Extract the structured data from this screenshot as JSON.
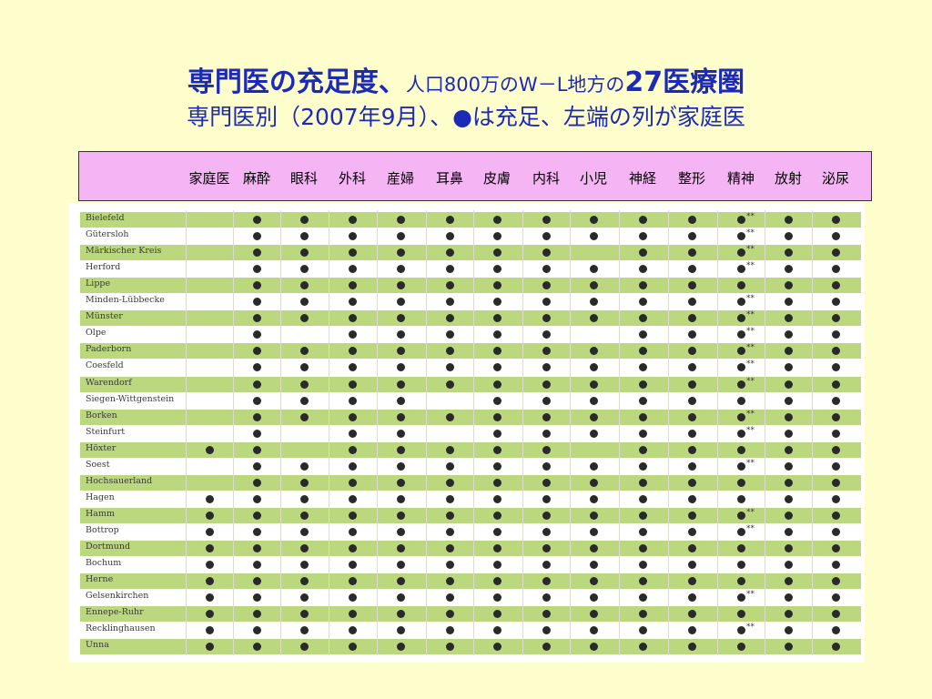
{
  "title_line1": {
    "part1": "専門医の充足度、",
    "part2": "人口800万のW－L地方の",
    "part3": "27医療圏"
  },
  "title_line2": "専門医別（2007年9月）、●は充足、左端の列が家庭医",
  "columns": [
    "家庭医",
    "麻酔",
    "眼科",
    "外科",
    "産婦",
    "耳鼻",
    "皮膚",
    "内科",
    "小児",
    "神経",
    "整形",
    "精神",
    "放射",
    "泌尿"
  ],
  "stars_marker": "**",
  "regions": [
    {
      "name": "Bielefeld",
      "dots": [
        0,
        1,
        1,
        1,
        1,
        1,
        1,
        1,
        1,
        1,
        1,
        2,
        1,
        1
      ]
    },
    {
      "name": "Gütersloh",
      "dots": [
        0,
        1,
        1,
        1,
        1,
        1,
        1,
        1,
        1,
        1,
        1,
        2,
        1,
        1
      ]
    },
    {
      "name": "Märkischer Kreis",
      "dots": [
        0,
        1,
        1,
        1,
        1,
        1,
        1,
        1,
        0,
        1,
        1,
        2,
        1,
        1
      ]
    },
    {
      "name": "Herford",
      "dots": [
        0,
        1,
        1,
        1,
        1,
        1,
        1,
        1,
        1,
        1,
        1,
        2,
        1,
        1
      ]
    },
    {
      "name": "Lippe",
      "dots": [
        0,
        1,
        1,
        1,
        1,
        1,
        1,
        1,
        1,
        1,
        1,
        1,
        1,
        1
      ]
    },
    {
      "name": "Minden-Lübbecke",
      "dots": [
        0,
        1,
        1,
        1,
        1,
        1,
        1,
        1,
        1,
        1,
        1,
        2,
        1,
        1
      ]
    },
    {
      "name": "Münster",
      "dots": [
        0,
        1,
        1,
        1,
        1,
        1,
        1,
        1,
        1,
        1,
        1,
        2,
        1,
        1
      ]
    },
    {
      "name": "Olpe",
      "dots": [
        0,
        1,
        0,
        1,
        1,
        1,
        1,
        1,
        0,
        1,
        1,
        2,
        1,
        1
      ]
    },
    {
      "name": "Paderborn",
      "dots": [
        0,
        1,
        1,
        1,
        1,
        1,
        1,
        1,
        1,
        1,
        1,
        2,
        1,
        1
      ]
    },
    {
      "name": "Coesfeld",
      "dots": [
        0,
        1,
        1,
        1,
        1,
        1,
        1,
        1,
        1,
        1,
        1,
        2,
        1,
        1
      ]
    },
    {
      "name": "Warendorf",
      "dots": [
        0,
        1,
        1,
        1,
        1,
        1,
        1,
        1,
        1,
        1,
        1,
        2,
        1,
        1
      ]
    },
    {
      "name": "Siegen-Wittgenstein",
      "dots": [
        0,
        1,
        1,
        1,
        1,
        0,
        1,
        1,
        1,
        1,
        1,
        1,
        1,
        1
      ]
    },
    {
      "name": "Borken",
      "dots": [
        0,
        1,
        1,
        1,
        1,
        1,
        1,
        1,
        1,
        1,
        1,
        2,
        1,
        1
      ]
    },
    {
      "name": "Steinfurt",
      "dots": [
        0,
        1,
        0,
        1,
        1,
        0,
        1,
        1,
        1,
        1,
        1,
        2,
        1,
        1
      ]
    },
    {
      "name": "Höxter",
      "dots": [
        1,
        1,
        0,
        1,
        1,
        1,
        1,
        1,
        0,
        1,
        1,
        1,
        1,
        1
      ]
    },
    {
      "name": "Soest",
      "dots": [
        0,
        1,
        1,
        1,
        1,
        1,
        1,
        1,
        1,
        1,
        1,
        2,
        1,
        1
      ]
    },
    {
      "name": "Hochsauerland",
      "dots": [
        0,
        1,
        1,
        1,
        1,
        1,
        1,
        1,
        1,
        1,
        1,
        1,
        1,
        1
      ]
    },
    {
      "name": "Hagen",
      "dots": [
        1,
        1,
        1,
        1,
        1,
        1,
        1,
        1,
        1,
        1,
        1,
        1,
        1,
        1
      ]
    },
    {
      "name": "Hamm",
      "dots": [
        1,
        1,
        1,
        1,
        1,
        1,
        1,
        1,
        1,
        1,
        1,
        2,
        1,
        1
      ]
    },
    {
      "name": "Bottrop",
      "dots": [
        1,
        1,
        1,
        1,
        1,
        1,
        1,
        1,
        1,
        1,
        1,
        2,
        1,
        1
      ]
    },
    {
      "name": "Dortmund",
      "dots": [
        1,
        1,
        1,
        1,
        1,
        1,
        1,
        1,
        1,
        1,
        1,
        1,
        1,
        1
      ]
    },
    {
      "name": "Bochum",
      "dots": [
        1,
        1,
        1,
        1,
        1,
        1,
        1,
        1,
        1,
        1,
        1,
        1,
        1,
        1
      ]
    },
    {
      "name": "Herne",
      "dots": [
        1,
        1,
        1,
        1,
        1,
        1,
        1,
        1,
        1,
        1,
        1,
        1,
        1,
        1
      ]
    },
    {
      "name": "Gelsenkirchen",
      "dots": [
        1,
        1,
        1,
        1,
        1,
        1,
        1,
        1,
        1,
        1,
        1,
        2,
        1,
        1
      ]
    },
    {
      "name": "Ennepe-Ruhr",
      "dots": [
        1,
        1,
        1,
        1,
        1,
        1,
        1,
        1,
        1,
        1,
        1,
        1,
        1,
        1
      ]
    },
    {
      "name": "Recklinghausen",
      "dots": [
        1,
        1,
        1,
        1,
        1,
        1,
        1,
        1,
        1,
        1,
        1,
        2,
        1,
        1
      ]
    },
    {
      "name": "Unna",
      "dots": [
        1,
        1,
        1,
        1,
        1,
        1,
        1,
        1,
        1,
        1,
        1,
        1,
        1,
        1
      ]
    }
  ],
  "colors": {
    "background": "#fefecc",
    "title": "#1c2ab8",
    "header_box": "#f5b4f3",
    "row_green": "#bcd87e",
    "dot": "#2a2a2a"
  }
}
